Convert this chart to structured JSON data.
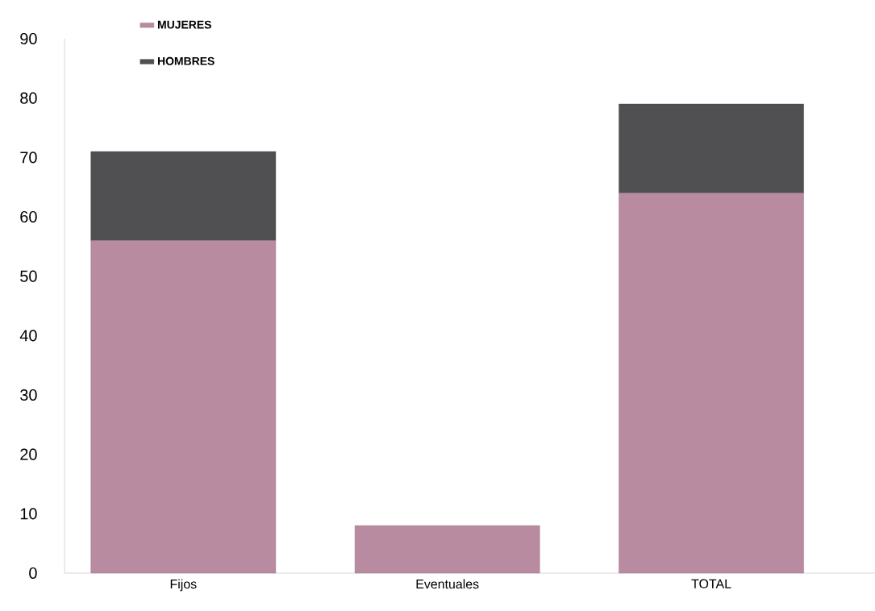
{
  "chart_data": {
    "type": "bar",
    "stacked": true,
    "categories": [
      "Fijos",
      "Eventuales",
      "TOTAL"
    ],
    "series": [
      {
        "name": "MUJERES",
        "color": "#b88ba0",
        "values": [
          56,
          8,
          64
        ]
      },
      {
        "name": "HOMBRES",
        "color": "#505052",
        "values": [
          15,
          0,
          15
        ]
      }
    ],
    "ylim": [
      0,
      90
    ],
    "yticks": [
      0,
      10,
      20,
      30,
      40,
      50,
      60,
      70,
      80,
      90
    ],
    "grid": false,
    "legend": "top left"
  }
}
